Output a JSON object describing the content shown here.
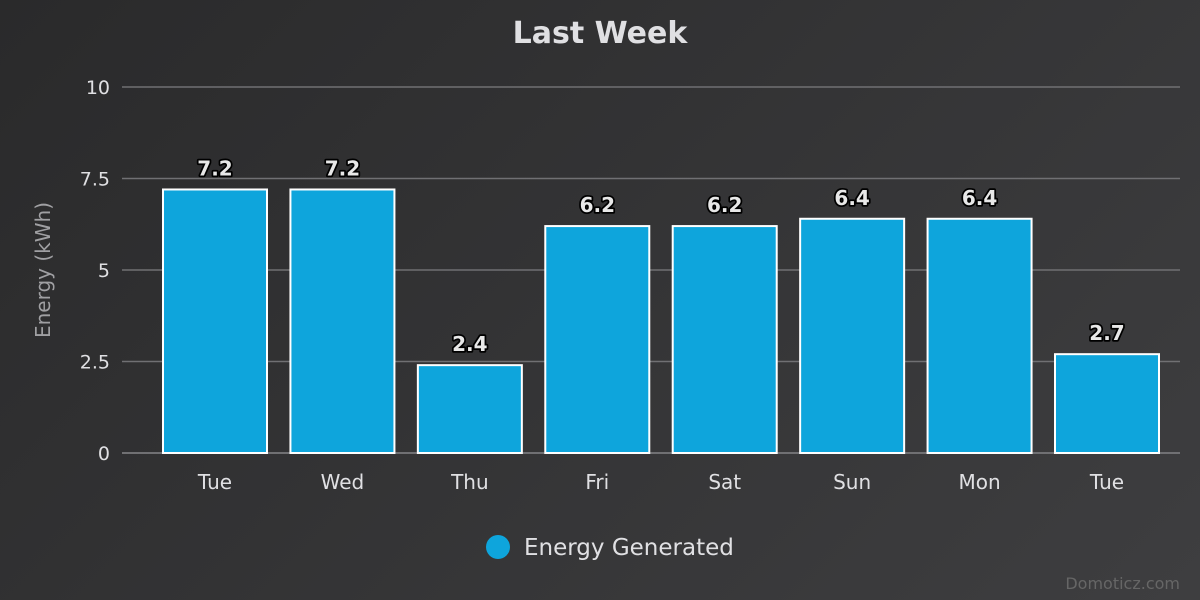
{
  "chart_data": {
    "type": "bar",
    "title": "Last Week",
    "ylabel": "Energy (kWh)",
    "xlabel": "",
    "categories": [
      "Tue",
      "Wed",
      "Thu",
      "Fri",
      "Sat",
      "Sun",
      "Mon",
      "Tue"
    ],
    "series": [
      {
        "name": "Energy Generated",
        "color": "#0ea5dc",
        "values": [
          7.2,
          7.2,
          2.4,
          6.2,
          6.2,
          6.4,
          6.4,
          2.7
        ]
      }
    ],
    "ylim": [
      0,
      10
    ],
    "yticks": [
      0,
      2.5,
      5,
      7.5,
      10
    ],
    "ytick_labels": [
      "0",
      "2.5",
      "5",
      "7.5",
      "10"
    ],
    "grid": true,
    "legend_position": "bottom-center",
    "data_labels": true
  },
  "credits": "Domoticz.com"
}
